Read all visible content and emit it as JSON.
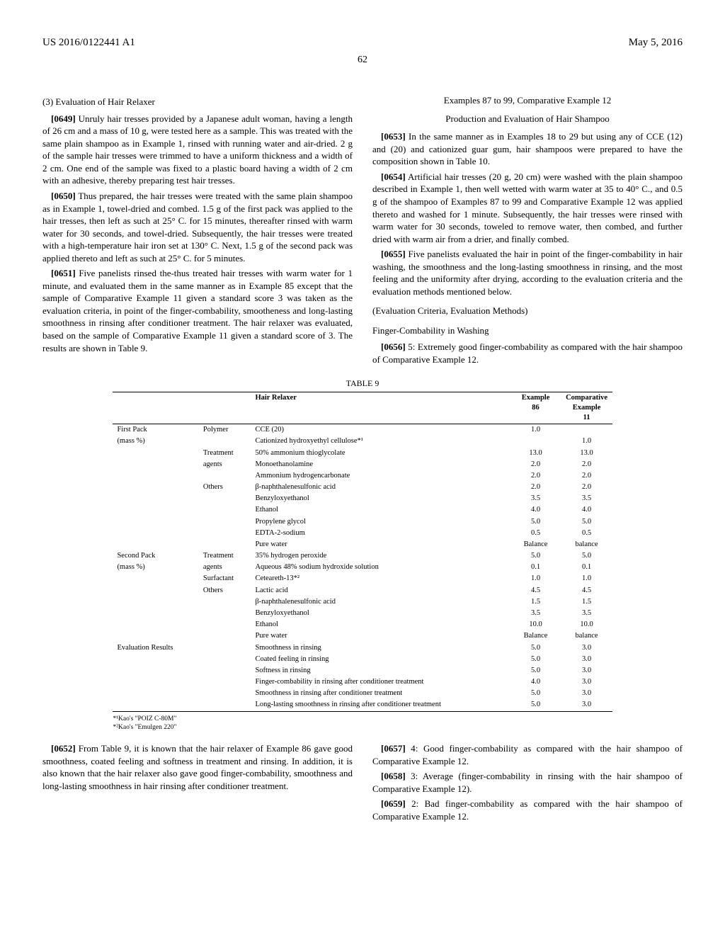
{
  "header": {
    "pub_no": "US 2016/0122441 A1",
    "pub_date": "May 5, 2016",
    "page": "62"
  },
  "left_col": {
    "sec3": "(3) Evaluation of Hair Relaxer",
    "p0649_num": "[0649]",
    "p0649": "Unruly hair tresses provided by a Japanese adult woman, having a length of 26 cm and a mass of 10 g, were tested here as a sample. This was treated with the same plain shampoo as in Example 1, rinsed with running water and air-dried. 2 g of the sample hair tresses were trimmed to have a uniform thickness and a width of 2 cm. One end of the sample was fixed to a plastic board having a width of 2 cm with an adhesive, thereby preparing test hair tresses.",
    "p0650_num": "[0650]",
    "p0650": "Thus prepared, the hair tresses were treated with the same plain shampoo as in Example 1, towel-dried and combed. 1.5 g of the first pack was applied to the hair tresses, then left as such at 25° C. for 15 minutes, thereafter rinsed with warm water for 30 seconds, and towel-dried. Subsequently, the hair tresses were treated with a high-temperature hair iron set at 130° C. Next, 1.5 g of the second pack was applied thereto and left as such at 25° C. for 5 minutes.",
    "p0651_num": "[0651]",
    "p0651": "Five panelists rinsed the-thus treated hair tresses with warm water for 1 minute, and evaluated them in the same manner as in Example 85 except that the sample of Comparative Example 11 given a standard score 3 was taken as the evaluation criteria, in point of the finger-combability, smootheness and long-lasting smoothness in rinsing after conditioner treatment. The hair relaxer was evaluated, based on the sample of Comparative Example 11 given a standard score of 3. The results are shown in Table 9."
  },
  "right_col": {
    "head1": "Examples 87 to 99, Comparative Example 12",
    "head2": "Production and Evaluation of Hair Shampoo",
    "p0653_num": "[0653]",
    "p0653": "In the same manner as in Examples 18 to 29 but using any of CCE (12) and (20) and cationized guar gum, hair shampoos were prepared to have the composition shown in Table 10.",
    "p0654_num": "[0654]",
    "p0654": "Artificial hair tresses (20 g, 20 cm) were washed with the plain shampoo described in Example 1, then well wetted with warm water at 35 to 40° C., and 0.5 g of the shampoo of Examples 87 to 99 and Comparative Example 12 was applied thereto and washed for 1 minute. Subsequently, the hair tresses were rinsed with warm water for 30 seconds, toweled to remove water, then combed, and further dried with warm air from a drier, and finally combed.",
    "p0655_num": "[0655]",
    "p0655": "Five panelists evaluated the hair in point of the finger-combability in hair washing, the smoothness and the long-lasting smoothness in rinsing, and the most feeling and the uniformity after drying, according to the evaluation criteria and the evaluation methods mentioned below.",
    "eval_head": "(Evaluation Criteria, Evaluation Methods)",
    "finger_head": "Finger-Combability in Washing",
    "p0656_num": "[0656]",
    "p0656": "5: Extremely good finger-combability as compared with the hair shampoo of Comparative Example 12."
  },
  "table9": {
    "caption": "TABLE 9",
    "head": {
      "c3": "Hair Relaxer",
      "c4a": "Example",
      "c4b": "86",
      "c5a": "Comparative",
      "c5b": "Example",
      "c5c": "11"
    },
    "rows": [
      {
        "g": "First Pack",
        "s": "Polymer",
        "n": "CCE (20)",
        "e": "1.0",
        "c": ""
      },
      {
        "g": "(mass %)",
        "s": "",
        "n": "Cationized hydroxyethyl cellulose*¹",
        "e": "",
        "c": "1.0"
      },
      {
        "g": "",
        "s": "Treatment",
        "n": "50% ammonium thioglycolate",
        "e": "13.0",
        "c": "13.0"
      },
      {
        "g": "",
        "s": "agents",
        "n": "Monoethanolamine",
        "e": "2.0",
        "c": "2.0"
      },
      {
        "g": "",
        "s": "",
        "n": "Ammonium hydrogencarbonate",
        "e": "2.0",
        "c": "2.0"
      },
      {
        "g": "",
        "s": "Others",
        "n": "β-naphthalenesulfonic acid",
        "e": "2.0",
        "c": "2.0"
      },
      {
        "g": "",
        "s": "",
        "n": "Benzyloxyethanol",
        "e": "3.5",
        "c": "3.5"
      },
      {
        "g": "",
        "s": "",
        "n": "Ethanol",
        "e": "4.0",
        "c": "4.0"
      },
      {
        "g": "",
        "s": "",
        "n": "Propylene glycol",
        "e": "5.0",
        "c": "5.0"
      },
      {
        "g": "",
        "s": "",
        "n": "EDTA-2-sodium",
        "e": "0.5",
        "c": "0.5"
      },
      {
        "g": "",
        "s": "",
        "n": "Pure water",
        "e": "Balance",
        "c": "balance"
      },
      {
        "g": "Second Pack",
        "s": "Treatment",
        "n": "35% hydrogen peroxide",
        "e": "5.0",
        "c": "5.0"
      },
      {
        "g": "(mass %)",
        "s": "agents",
        "n": "Aqueous 48% sodium hydroxide solution",
        "e": "0.1",
        "c": "0.1"
      },
      {
        "g": "",
        "s": "Surfactant",
        "n": "Ceteareth-13*²",
        "e": "1.0",
        "c": "1.0"
      },
      {
        "g": "",
        "s": "Others",
        "n": "Lactic acid",
        "e": "4.5",
        "c": "4.5"
      },
      {
        "g": "",
        "s": "",
        "n": "β-naphthalenesulfonic acid",
        "e": "1.5",
        "c": "1.5"
      },
      {
        "g": "",
        "s": "",
        "n": "Benzyloxyethanol",
        "e": "3.5",
        "c": "3.5"
      },
      {
        "g": "",
        "s": "",
        "n": "Ethanol",
        "e": "10.0",
        "c": "10.0"
      },
      {
        "g": "",
        "s": "",
        "n": "Pure water",
        "e": "Balance",
        "c": "balance"
      },
      {
        "g": "Evaluation Results",
        "s": "",
        "n": "Smoothness in rinsing",
        "e": "5.0",
        "c": "3.0"
      },
      {
        "g": "",
        "s": "",
        "n": "Coated feeling in rinsing",
        "e": "5.0",
        "c": "3.0"
      },
      {
        "g": "",
        "s": "",
        "n": "Softness in rinsing",
        "e": "5.0",
        "c": "3.0"
      },
      {
        "g": "",
        "s": "",
        "n": "Finger-combability in rinsing after conditioner treatment",
        "e": "4.0",
        "c": "3.0"
      },
      {
        "g": "",
        "s": "",
        "n": "Smoothness in rinsing after conditioner treatment",
        "e": "5.0",
        "c": "3.0"
      },
      {
        "g": "",
        "s": "",
        "n": "Long-lasting smoothness in rinsing after conditioner treatment",
        "e": "5.0",
        "c": "3.0"
      }
    ],
    "fn1": "*¹Kao's \"POIZ C-80M\"",
    "fn2": "*²Kao's \"Emulgen 220\""
  },
  "bottom_left": {
    "p0652_num": "[0652]",
    "p0652": "From Table 9, it is known that the hair relaxer of Example 86 gave good smoothness, coated feeling and softness in treatment and rinsing. In addition, it is also known that the hair relaxer also gave good finger-combability, smoothness and long-lasting smoothness in hair rinsing after conditioner treatment."
  },
  "bottom_right": {
    "p0657_num": "[0657]",
    "p0657": "4: Good finger-combability as compared with the hair shampoo of Comparative Example 12.",
    "p0658_num": "[0658]",
    "p0658": "3: Average (finger-combability in rinsing with the hair shampoo of Comparative Example 12).",
    "p0659_num": "[0659]",
    "p0659": "2: Bad finger-combability as compared with the hair shampoo of Comparative Example 12."
  }
}
